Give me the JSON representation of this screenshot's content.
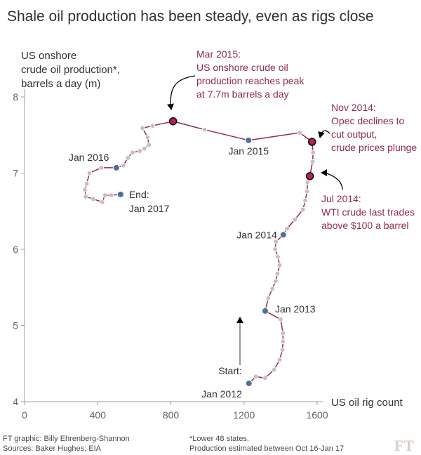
{
  "title": "Shale oil production has been steady, even as rigs close",
  "footer": {
    "credit": "FT graphic: Billy Ehrenberg-Shannon",
    "sources": "Sources: Baker Hughes; EIA",
    "note1": "*Lower 48 states.",
    "note2": "Production estimated between Oct 16-Jan 17",
    "logo": "FT"
  },
  "chart_data": {
    "type": "scatter",
    "style": "connected",
    "ylabel": [
      "US onshore",
      "crude oil production*,",
      "barrels a day (m)"
    ],
    "xlabel": "US oil rig count",
    "xlim": [
      0,
      1650
    ],
    "ylim": [
      4,
      8.1
    ],
    "xticks": [
      0,
      400,
      800,
      1200,
      1600
    ],
    "xtick_labels": [
      "0",
      "400",
      "800",
      "1200",
      "1600"
    ],
    "yticks": [
      4,
      5,
      6,
      7,
      8
    ],
    "ytick_labels": [
      "4",
      "5",
      "6",
      "7",
      "8"
    ],
    "colors": {
      "line": "#8f2a4f",
      "point": "#c9bdbf",
      "labelled_point": "#4f6e99",
      "highlight_point": "#b8234a",
      "annotation_text": "#8f2a4f",
      "axis": "#a69e99"
    },
    "points": [
      {
        "x": 1227,
        "y": 4.24,
        "kind": "labelled"
      },
      {
        "x": 1265,
        "y": 4.33
      },
      {
        "x": 1315,
        "y": 4.31
      },
      {
        "x": 1365,
        "y": 4.42
      },
      {
        "x": 1395,
        "y": 4.55
      },
      {
        "x": 1410,
        "y": 4.68
      },
      {
        "x": 1413,
        "y": 4.79
      },
      {
        "x": 1413,
        "y": 4.9
      },
      {
        "x": 1400,
        "y": 5.08
      },
      {
        "x": 1316,
        "y": 5.19,
        "kind": "labelled"
      },
      {
        "x": 1333,
        "y": 5.36
      },
      {
        "x": 1355,
        "y": 5.48
      },
      {
        "x": 1373,
        "y": 5.58
      },
      {
        "x": 1383,
        "y": 5.68
      },
      {
        "x": 1395,
        "y": 5.79
      },
      {
        "x": 1385,
        "y": 5.9
      },
      {
        "x": 1370,
        "y": 6.0
      },
      {
        "x": 1375,
        "y": 6.1
      },
      {
        "x": 1415,
        "y": 6.19,
        "kind": "labelled"
      },
      {
        "x": 1435,
        "y": 6.27
      },
      {
        "x": 1478,
        "y": 6.39
      },
      {
        "x": 1522,
        "y": 6.52
      },
      {
        "x": 1535,
        "y": 6.64
      },
      {
        "x": 1545,
        "y": 6.76
      },
      {
        "x": 1547,
        "y": 6.88
      },
      {
        "x": 1560,
        "y": 6.96,
        "kind": "highlight"
      },
      {
        "x": 1575,
        "y": 7.15
      },
      {
        "x": 1578,
        "y": 7.27
      },
      {
        "x": 1572,
        "y": 7.41,
        "kind": "highlight"
      },
      {
        "x": 1505,
        "y": 7.53
      },
      {
        "x": 1225,
        "y": 7.43,
        "kind": "labelled"
      },
      {
        "x": 985,
        "y": 7.57
      },
      {
        "x": 812,
        "y": 7.68,
        "kind": "highlight"
      },
      {
        "x": 700,
        "y": 7.62
      },
      {
        "x": 645,
        "y": 7.59
      },
      {
        "x": 673,
        "y": 7.47
      },
      {
        "x": 680,
        "y": 7.37
      },
      {
        "x": 655,
        "y": 7.32
      },
      {
        "x": 630,
        "y": 7.29
      },
      {
        "x": 590,
        "y": 7.27
      },
      {
        "x": 565,
        "y": 7.2
      },
      {
        "x": 540,
        "y": 7.1
      },
      {
        "x": 502,
        "y": 7.07,
        "kind": "labelled"
      },
      {
        "x": 420,
        "y": 7.07
      },
      {
        "x": 355,
        "y": 7.0
      },
      {
        "x": 340,
        "y": 6.86
      },
      {
        "x": 330,
        "y": 6.78
      },
      {
        "x": 335,
        "y": 6.69
      },
      {
        "x": 375,
        "y": 6.66
      },
      {
        "x": 425,
        "y": 6.62
      },
      {
        "x": 440,
        "y": 6.71
      },
      {
        "x": 475,
        "y": 6.71
      },
      {
        "x": 525,
        "y": 6.72,
        "kind": "labelled"
      }
    ],
    "point_labels": [
      {
        "text": "Jan 2016",
        "x": 502,
        "y": 7.07
      },
      {
        "text": "End:",
        "x": 525,
        "y": 6.72
      },
      {
        "text": "Jan 2017",
        "x": 525,
        "y": 6.72
      },
      {
        "text": "Jan 2015",
        "x": 1225,
        "y": 7.43
      },
      {
        "text": "Jan 2014",
        "x": 1415,
        "y": 6.19
      },
      {
        "text": "Jan 2013",
        "x": 1316,
        "y": 5.19
      },
      {
        "text": "Start:",
        "x": 1227,
        "y": 4.24
      },
      {
        "text": "Jan 2012",
        "x": 1227,
        "y": 4.24
      }
    ],
    "annotations": [
      {
        "lines": [
          "Mar 2015:",
          "US onshore crude oil",
          "production reaches peak",
          "at 7.7m barrels a day"
        ],
        "target": {
          "x": 812,
          "y": 7.68
        }
      },
      {
        "lines": [
          "Nov 2014:",
          "Opec declines to",
          "cut output,",
          "crude prices plunge"
        ],
        "target": {
          "x": 1572,
          "y": 7.41
        }
      },
      {
        "lines": [
          "Jul 2014:",
          "WTI crude last trades",
          "above $100 a barrel"
        ],
        "target": {
          "x": 1560,
          "y": 6.96
        }
      }
    ]
  }
}
